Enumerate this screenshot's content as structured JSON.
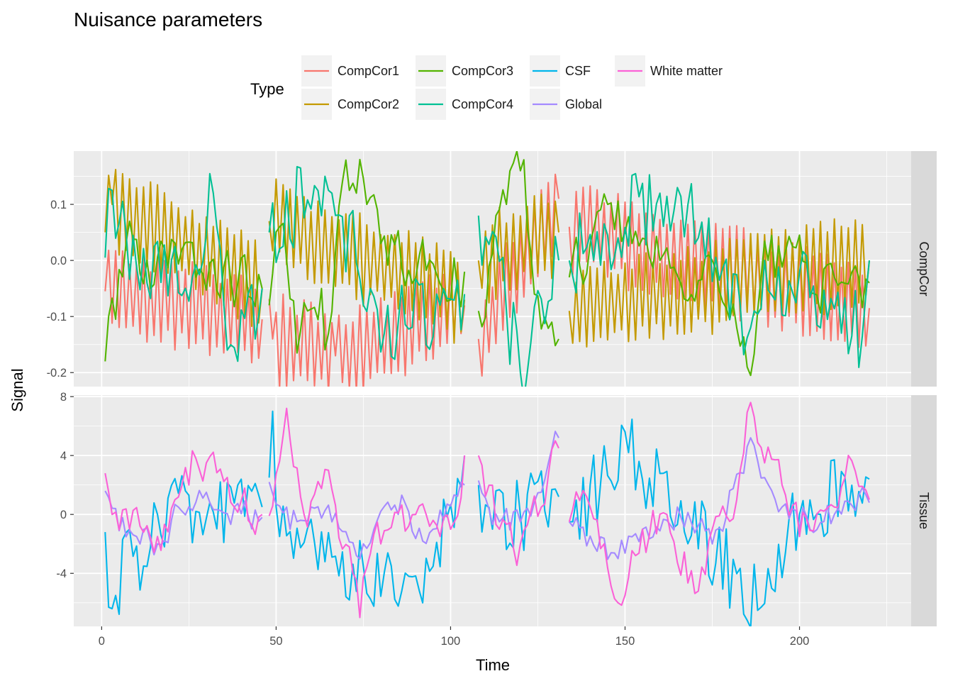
{
  "title": "Nuisance parameters",
  "chart_data": {
    "type": "line",
    "title": "Nuisance parameters",
    "xlabel": "Time",
    "ylabel": "Signal",
    "xlim": [
      -8,
      232
    ],
    "xticks": [
      0,
      50,
      100,
      150,
      200
    ],
    "legend": {
      "title": "Type",
      "placement": "top",
      "entries": [
        {
          "name": "CompCor1",
          "color": "#F8766D"
        },
        {
          "name": "CompCor2",
          "color": "#C49A00"
        },
        {
          "name": "CompCor3",
          "color": "#53B400"
        },
        {
          "name": "CompCor4",
          "color": "#00C094"
        },
        {
          "name": "CSF",
          "color": "#00B6EB"
        },
        {
          "name": "Global",
          "color": "#A58AFF"
        },
        {
          "name": "White matter",
          "color": "#FB61D7"
        }
      ]
    },
    "segments": [
      [
        1,
        46
      ],
      [
        48,
        104
      ],
      [
        108,
        131
      ],
      [
        134,
        220
      ]
    ],
    "panels": [
      {
        "strip": "CompCor",
        "ylim": [
          -0.225,
          0.195
        ],
        "yticks": [
          -0.2,
          -0.1,
          0.0,
          0.1
        ],
        "ytick_labels": [
          "-0.2",
          "-0.1",
          "0.0",
          "0.1"
        ],
        "series": [
          {
            "name": "CompCor1",
            "color": "#F8766D",
            "amplitude": 0.085,
            "style": "alternating",
            "anchors": [
              [
                1,
                -0.055
              ],
              [
                46,
                -0.105
              ],
              [
                49,
                -0.14
              ],
              [
                67,
                -0.17
              ],
              [
                104,
                -0.08
              ],
              [
                108,
                -0.14
              ],
              [
                131,
                0.11
              ],
              [
                134,
                0.06
              ],
              [
                220,
                -0.085
              ]
            ]
          },
          {
            "name": "CompCor2",
            "color": "#C49A00",
            "amplitude": 0.085,
            "style": "alternating",
            "anchors": [
              [
                1,
                0.05
              ],
              [
                3,
                0.1
              ],
              [
                46,
                -0.05
              ],
              [
                48,
                0.07
              ],
              [
                104,
                -0.07
              ],
              [
                108,
                0.0
              ],
              [
                131,
                0.05
              ],
              [
                134,
                -0.09
              ],
              [
                220,
                0.0
              ]
            ]
          },
          {
            "name": "CompCor3",
            "color": "#53B400",
            "amplitude": 0.05,
            "style": "smooth",
            "anchors": [
              [
                1,
                -0.18
              ],
              [
                2,
                -0.1
              ],
              [
                4,
                -0.105
              ],
              [
                8,
                0.07
              ],
              [
                13,
                0.0
              ],
              [
                46,
                -0.05
              ],
              [
                48,
                -0.08
              ],
              [
                51,
                0.06
              ],
              [
                56,
                -0.165
              ],
              [
                63,
                -0.05
              ],
              [
                65,
                -0.13
              ],
              [
                69,
                0.14
              ],
              [
                73,
                0.12
              ],
              [
                74,
                0.18
              ],
              [
                76,
                0.1
              ],
              [
                80,
                0.03
              ],
              [
                104,
                -0.02
              ],
              [
                108,
                -0.09
              ],
              [
                113,
                0.08
              ],
              [
                116,
                0.1
              ],
              [
                120,
                0.16
              ],
              [
                124,
                -0.06
              ],
              [
                129,
                -0.11
              ],
              [
                131,
                -0.14
              ],
              [
                134,
                -0.03
              ],
              [
                140,
                0.03
              ],
              [
                145,
                0.1
              ],
              [
                150,
                0.05
              ],
              [
                160,
                0.0
              ],
              [
                175,
                0.0
              ],
              [
                182,
                -0.12
              ],
              [
                185,
                -0.19
              ],
              [
                186,
                -0.205
              ],
              [
                188,
                -0.09
              ],
              [
                191,
                0.0
              ],
              [
                210,
                -0.03
              ],
              [
                220,
                -0.04
              ]
            ]
          },
          {
            "name": "CompCor4",
            "color": "#00C094",
            "amplitude": 0.075,
            "style": "noisy",
            "anchors": [
              [
                1,
                0.005
              ],
              [
                3,
                0.125
              ],
              [
                7,
                0.05
              ],
              [
                13,
                -0.04
              ],
              [
                20,
                0.0
              ],
              [
                26,
                -0.03
              ],
              [
                32,
                0.12
              ],
              [
                36,
                -0.16
              ],
              [
                46,
                -0.05
              ],
              [
                48,
                0.05
              ],
              [
                64,
                0.15
              ],
              [
                66,
                0.12
              ],
              [
                81,
                -0.13
              ],
              [
                104,
                -0.06
              ],
              [
                108,
                0.08
              ],
              [
                116,
                -0.09
              ],
              [
                120,
                -0.2
              ],
              [
                131,
                0.0
              ],
              [
                134,
                0.0
              ],
              [
                160,
                0.12
              ],
              [
                165,
                0.13
              ],
              [
                186,
                -0.12
              ],
              [
                190,
                0.0
              ],
              [
                218,
                -0.135
              ],
              [
                220,
                0.0
              ]
            ]
          }
        ]
      },
      {
        "strip": "Tissue",
        "ylim": [
          -7.6,
          8.1
        ],
        "yticks": [
          -4,
          0,
          4,
          8
        ],
        "ytick_labels": [
          "-4",
          "0",
          "4",
          "8"
        ],
        "series": [
          {
            "name": "CSF",
            "color": "#00B6EB",
            "amplitude": 2.6,
            "style": "noisy",
            "anchors": [
              [
                1,
                -1.2
              ],
              [
                2,
                -6.3
              ],
              [
                4,
                -5.5
              ],
              [
                8,
                -1.0
              ],
              [
                12,
                -3.5
              ],
              [
                16,
                0.0
              ],
              [
                46,
                0.5
              ],
              [
                48,
                2.5
              ],
              [
                49,
                7.0
              ],
              [
                51,
                -1.5
              ],
              [
                92,
                -6.0
              ],
              [
                104,
                4.0
              ],
              [
                108,
                2.0
              ],
              [
                112,
                -1.0
              ],
              [
                131,
                1.2
              ],
              [
                134,
                -0.5
              ],
              [
                151,
                4.2
              ],
              [
                189,
                -6.3
              ],
              [
                200,
                0.0
              ],
              [
                220,
                2.4
              ]
            ]
          },
          {
            "name": "Global",
            "color": "#A58AFF",
            "amplitude": 1.0,
            "style": "smooth",
            "anchors": [
              [
                1,
                1.6
              ],
              [
                4,
                0.4
              ],
              [
                10,
                -1.5
              ],
              [
                16,
                -2.0
              ],
              [
                22,
                0.5
              ],
              [
                30,
                1.5
              ],
              [
                38,
                0.5
              ],
              [
                46,
                -0.2
              ],
              [
                48,
                2.2
              ],
              [
                54,
                -1.0
              ],
              [
                60,
                0.5
              ],
              [
                66,
                -0.5
              ],
              [
                75,
                -2.0
              ],
              [
                85,
                0.0
              ],
              [
                95,
                -1.0
              ],
              [
                104,
                2.0
              ],
              [
                108,
                2.3
              ],
              [
                114,
                -0.5
              ],
              [
                120,
                -0.5
              ],
              [
                126,
                1.5
              ],
              [
                131,
                5.2
              ],
              [
                134,
                -0.5
              ],
              [
                142,
                -2.5
              ],
              [
                148,
                -3.0
              ],
              [
                155,
                -1.0
              ],
              [
                165,
                0.5
              ],
              [
                175,
                -2.0
              ],
              [
                186,
                5.2
              ],
              [
                190,
                2.5
              ],
              [
                200,
                -1.0
              ],
              [
                210,
                0.0
              ],
              [
                220,
                0.8
              ]
            ]
          },
          {
            "name": "White matter",
            "color": "#FB61D7",
            "amplitude": 1.4,
            "style": "smooth",
            "anchors": [
              [
                1,
                2.8
              ],
              [
                3,
                0.0
              ],
              [
                8,
                -1.0
              ],
              [
                16,
                -1.5
              ],
              [
                25,
                2.0
              ],
              [
                30,
                3.5
              ],
              [
                38,
                0.5
              ],
              [
                46,
                0.0
              ],
              [
                48,
                -0.1
              ],
              [
                53,
                7.2
              ],
              [
                58,
                0.0
              ],
              [
                65,
                3.0
              ],
              [
                72,
                -4.0
              ],
              [
                74,
                -7.0
              ],
              [
                80,
                -2.0
              ],
              [
                90,
                0.0
              ],
              [
                100,
                -1.0
              ],
              [
                104,
                4.0
              ],
              [
                108,
                4.0
              ],
              [
                114,
                -1.0
              ],
              [
                120,
                -2.0
              ],
              [
                126,
                0.5
              ],
              [
                131,
                4.5
              ],
              [
                134,
                -0.5
              ],
              [
                140,
                0.5
              ],
              [
                144,
                -2.0
              ],
              [
                148,
                -6.0
              ],
              [
                155,
                -1.0
              ],
              [
                162,
                0.0
              ],
              [
                171,
                -5.2
              ],
              [
                175,
                -1.0
              ],
              [
                182,
                1.0
              ],
              [
                186,
                7.6
              ],
              [
                190,
                3.5
              ],
              [
                195,
                2.0
              ],
              [
                200,
                -1.5
              ],
              [
                210,
                0.5
              ],
              [
                214,
                4.0
              ],
              [
                220,
                1.0
              ]
            ]
          }
        ]
      }
    ]
  }
}
